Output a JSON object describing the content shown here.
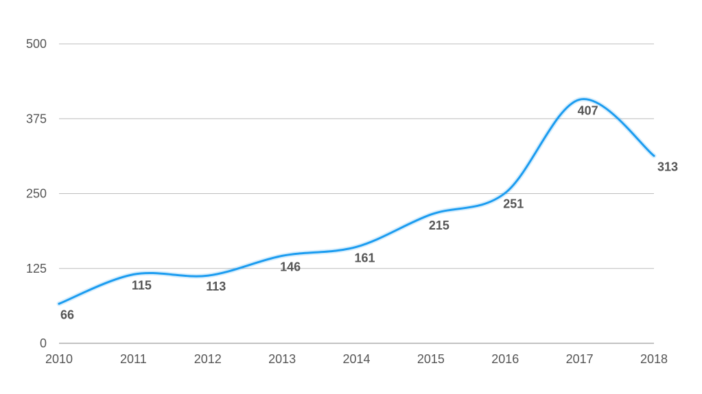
{
  "chart_data": {
    "type": "line",
    "title": "",
    "xlabel": "",
    "ylabel": "",
    "x": [
      "2010",
      "2011",
      "2012",
      "2013",
      "2014",
      "2015",
      "2016",
      "2017",
      "2018"
    ],
    "series": [
      {
        "values": [
          66,
          115,
          113,
          146,
          161,
          215,
          251,
          407,
          313
        ],
        "color": "#1b9cf0",
        "smooth": true
      }
    ],
    "data_labels": [
      "66",
      "115",
      "113",
      "146",
      "161",
      "215",
      "251",
      "407",
      "313"
    ],
    "ylim": [
      0,
      500
    ],
    "yticks": [
      "0",
      "125",
      "250",
      "375",
      "500"
    ],
    "grid": true,
    "legend": "none"
  }
}
